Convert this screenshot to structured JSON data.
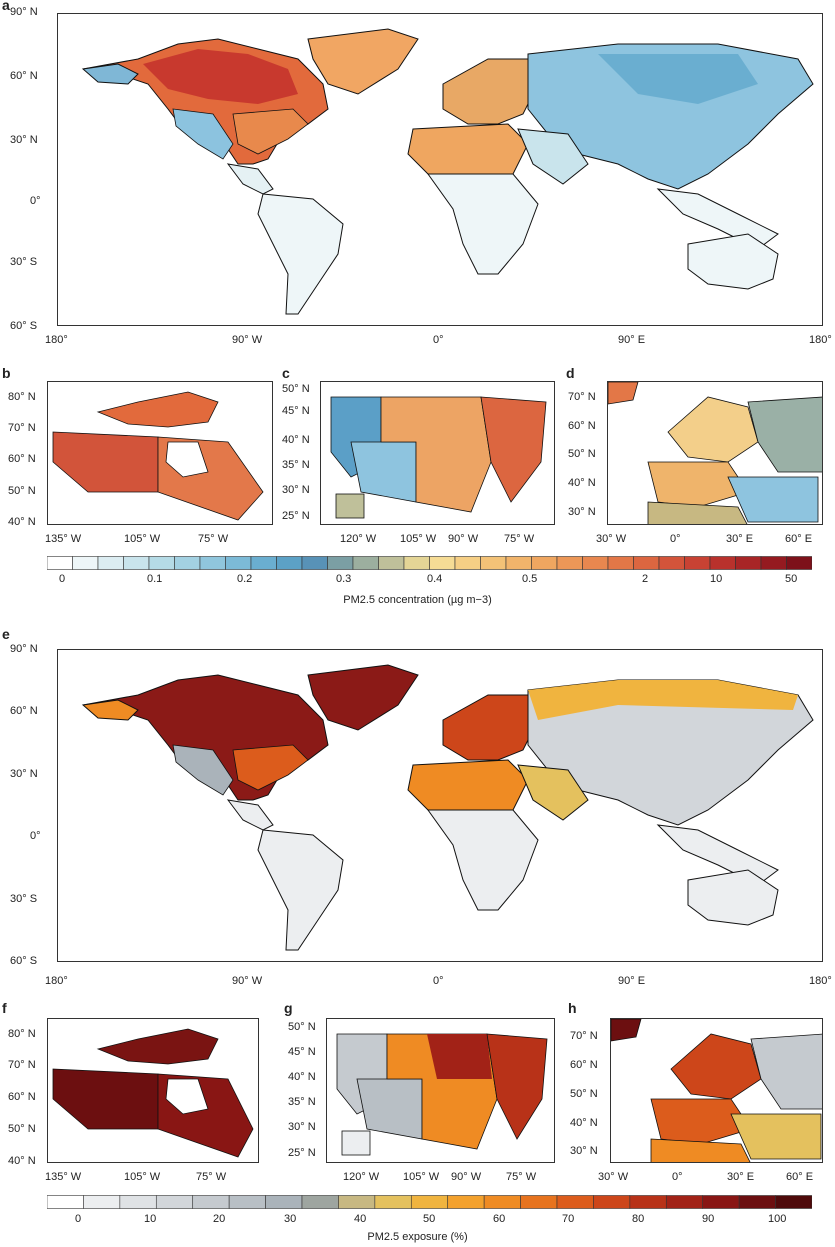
{
  "panels": {
    "a": "a",
    "b": "b",
    "c": "c",
    "d": "d",
    "e": "e",
    "f": "f",
    "g": "g",
    "h": "h"
  },
  "world_lat_ticks": [
    "90° N",
    "60° N",
    "30° N",
    "0°",
    "30° S",
    "60° S"
  ],
  "world_lon_ticks": [
    "180°",
    "90° W",
    "0°",
    "90° E",
    "180°"
  ],
  "canada": {
    "lat_ticks": [
      "80° N",
      "70° N",
      "60° N",
      "50° N",
      "40° N"
    ],
    "lon_ticks": [
      "135° W",
      "105° W",
      "75° W"
    ]
  },
  "usa": {
    "lat_ticks": [
      "50° N",
      "45° N",
      "40° N",
      "35° N",
      "30° N",
      "25° N"
    ],
    "lon_ticks": [
      "120° W",
      "105° W",
      "90° W",
      "75° W"
    ]
  },
  "europe": {
    "lat_ticks": [
      "70° N",
      "60° N",
      "50° N",
      "40° N",
      "30° N"
    ],
    "lon_ticks": [
      "30° W",
      "0°",
      "30° E",
      "60° E"
    ]
  },
  "concentration_bar": {
    "caption": "PM2.5 concentration (µg m−3)",
    "labels": [
      "0",
      "0.1",
      "0.2",
      "0.3",
      "0.4",
      "0.5",
      "2",
      "10",
      "50"
    ],
    "colors": [
      "#ffffff",
      "#eef6f8",
      "#dcedf2",
      "#c9e4ec",
      "#b5dbe6",
      "#a3d1e2",
      "#90c6dd",
      "#7cbad7",
      "#6aaed0",
      "#5ca1c6",
      "#5892b7",
      "#7b9fa4",
      "#9caf9f",
      "#bfc09a",
      "#e4d596",
      "#f6dc95",
      "#f6cf85",
      "#f3c277",
      "#f1b46b",
      "#efa660",
      "#ec9757",
      "#e8874f",
      "#e37747",
      "#dc6640",
      "#d3543a",
      "#c84233",
      "#b9312c",
      "#a82526",
      "#951a20",
      "#7d111a"
    ]
  },
  "exposure_bar": {
    "caption": "PM2.5 exposure (%)",
    "labels": [
      "0",
      "10",
      "20",
      "30",
      "40",
      "50",
      "60",
      "70",
      "80",
      "90",
      "100"
    ],
    "colors": [
      "#ffffff",
      "#eceef0",
      "#dfe2e5",
      "#d2d6da",
      "#c5cacf",
      "#b8bfc5",
      "#aab3ba",
      "#9ea5a0",
      "#c7b882",
      "#e4c15e",
      "#f0b43f",
      "#f3a12d",
      "#ef8b23",
      "#e7731e",
      "#dc5c1c",
      "#cd461a",
      "#b83218",
      "#a22217",
      "#891614",
      "#6c0f10",
      "#4f0a0b"
    ]
  },
  "colors": {
    "land_none": "#eef2f3",
    "border": "#111111"
  }
}
